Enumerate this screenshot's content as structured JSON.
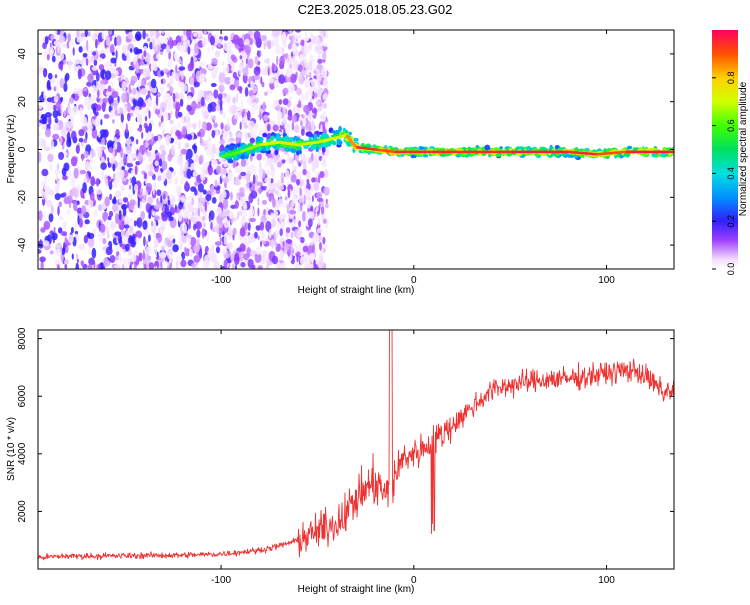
{
  "figure": {
    "title": "C2E3.2025.018.05.23.G02"
  },
  "chart_data": [
    {
      "type": "heatmap",
      "title": "",
      "xlabel": "Height of straight line (km)",
      "ylabel": "Frequency (Hz)",
      "xlim": [
        -195,
        135
      ],
      "ylim": [
        -50,
        50
      ],
      "xticks": [
        -100,
        0,
        100
      ],
      "yticks": [
        -40,
        -20,
        0,
        20,
        40
      ],
      "colorbar": {
        "label": "Normalized spectral amplitude",
        "range": [
          0,
          1
        ],
        "ticks": [
          0.0,
          0.2,
          0.4,
          0.6,
          0.8
        ]
      },
      "ridge": {
        "x": [
          -100,
          -90,
          -80,
          -70,
          -60,
          -50,
          -40,
          -35,
          -30,
          -20,
          -10,
          0,
          20,
          50,
          80,
          95,
          110,
          135
        ],
        "frequency": [
          -3,
          -1,
          2,
          3,
          2,
          3,
          5,
          6,
          1,
          0,
          -1,
          -1,
          -1,
          -1,
          -1,
          -2,
          -1,
          -1
        ],
        "amplitude": [
          0.6,
          0.65,
          0.7,
          0.75,
          0.7,
          0.7,
          0.7,
          0.85,
          0.95,
          0.9,
          0.95,
          0.95,
          0.95,
          0.97,
          0.95,
          0.9,
          0.97,
          0.97
        ]
      },
      "noise_region": {
        "x": [
          -195,
          -45
        ],
        "frequency": [
          -50,
          50
        ],
        "amplitude_max": 0.15
      }
    },
    {
      "type": "line",
      "title": "",
      "xlabel": "Height of straight line (km)",
      "ylabel": "SNR (10 * v/v)",
      "xlim": [
        -195,
        135
      ],
      "ylim": [
        0,
        8300
      ],
      "xticks": [
        -100,
        0,
        100
      ],
      "yticks": [
        2000,
        4000,
        6000,
        8000
      ],
      "color": "#ee3333",
      "series": [
        {
          "x": [
            -195,
            -180,
            -160,
            -140,
            -120,
            -100,
            -80,
            -70,
            -60,
            -50,
            -40,
            -35,
            -30,
            -25,
            -20,
            -15,
            -12,
            -10,
            -5,
            0,
            5,
            10,
            15,
            20,
            25,
            30,
            35,
            40,
            50,
            60,
            70,
            80,
            90,
            100,
            110,
            115,
            120,
            125,
            130,
            135
          ],
          "values": [
            400,
            450,
            450,
            470,
            480,
            520,
            650,
            800,
            1000,
            1300,
            1600,
            2000,
            2400,
            2800,
            3000,
            2600,
            2400,
            3200,
            3900,
            4000,
            4200,
            4400,
            4700,
            5000,
            5300,
            5600,
            5900,
            6200,
            6400,
            6500,
            6600,
            6600,
            6700,
            6800,
            6900,
            6900,
            6700,
            6400,
            6100,
            6300
          ]
        }
      ]
    }
  ]
}
